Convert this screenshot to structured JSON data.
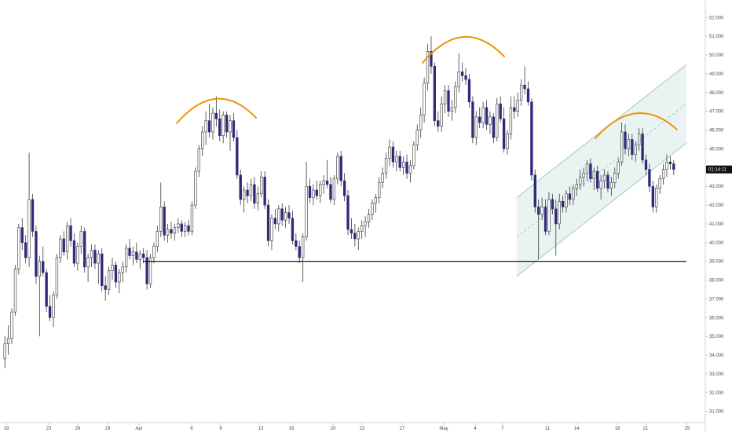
{
  "chart_data": {
    "type": "candlestick",
    "x_tick_labels": [
      "19",
      "23",
      "26",
      "29",
      "Apr",
      "6",
      "9",
      "13",
      "16",
      "20",
      "23",
      "27",
      "May",
      "4",
      "7",
      "11",
      "14",
      "18",
      "21",
      "25"
    ],
    "y_tick_labels": [
      "31.000",
      "32.000",
      "33.000",
      "34.000",
      "35.000",
      "36.000",
      "37.000",
      "38.000",
      "39.000",
      "40.000",
      "41.000",
      "42.000",
      "43.000",
      "44.000",
      "45.000",
      "46.000",
      "47.000",
      "48.000",
      "49.000",
      "50.000",
      "51.000",
      "52.000"
    ],
    "ylim": [
      30.4,
      52.6
    ],
    "current_price": 43.9,
    "countdown_label": "01:14:11",
    "support_level": 39.0,
    "colors": {
      "up_body": "#ffffff",
      "down_body": "#2e2a7a",
      "wick": "#3a3a3a",
      "support_line": "#000000",
      "arc": "#f0920c",
      "channel_fill": "#e9f4f2",
      "channel_line": "#9ec8c0",
      "price_label_bg": "#111111",
      "price_label_text": "#ffffff"
    },
    "candles": [
      [
        33.8,
        35.0,
        33.3,
        34.6
      ],
      [
        34.6,
        35.6,
        34.0,
        34.9
      ],
      [
        34.9,
        36.5,
        34.6,
        36.3
      ],
      [
        36.3,
        38.8,
        36.1,
        38.6
      ],
      [
        38.6,
        41.0,
        38.3,
        40.8
      ],
      [
        40.8,
        41.3,
        39.6,
        40.0
      ],
      [
        40.0,
        40.4,
        38.9,
        39.2
      ],
      [
        39.2,
        44.8,
        38.7,
        42.3
      ],
      [
        42.3,
        42.6,
        40.3,
        40.6
      ],
      [
        40.6,
        40.9,
        37.8,
        38.2
      ],
      [
        38.2,
        39.3,
        35.0,
        39.0
      ],
      [
        39.0,
        39.8,
        38.2,
        38.4
      ],
      [
        38.4,
        38.6,
        36.3,
        36.6
      ],
      [
        36.6,
        37.2,
        35.8,
        36.0
      ],
      [
        36.0,
        37.4,
        35.5,
        37.2
      ],
      [
        37.2,
        39.4,
        37.0,
        39.2
      ],
      [
        39.2,
        40.4,
        38.9,
        40.2
      ],
      [
        40.2,
        40.6,
        39.3,
        39.5
      ],
      [
        39.5,
        41.1,
        39.1,
        40.9
      ],
      [
        40.9,
        41.3,
        39.8,
        40.1
      ],
      [
        40.1,
        40.5,
        38.7,
        38.9
      ],
      [
        38.9,
        40.0,
        38.5,
        39.8
      ],
      [
        39.8,
        40.9,
        39.4,
        40.6
      ],
      [
        40.6,
        40.8,
        38.4,
        38.7
      ],
      [
        38.7,
        39.4,
        37.9,
        39.2
      ],
      [
        39.2,
        39.9,
        38.7,
        39.6
      ],
      [
        39.6,
        39.9,
        38.6,
        38.9
      ],
      [
        38.9,
        39.6,
        37.8,
        39.4
      ],
      [
        39.4,
        39.7,
        37.4,
        37.7
      ],
      [
        37.7,
        38.2,
        36.9,
        37.5
      ],
      [
        37.5,
        38.7,
        37.2,
        38.5
      ],
      [
        38.5,
        39.2,
        38.0,
        38.8
      ],
      [
        38.8,
        39.0,
        37.6,
        37.9
      ],
      [
        37.9,
        38.6,
        37.3,
        38.4
      ],
      [
        38.4,
        39.0,
        37.9,
        38.7
      ],
      [
        38.7,
        39.9,
        38.4,
        39.7
      ],
      [
        39.7,
        40.2,
        39.1,
        39.3
      ],
      [
        39.3,
        39.8,
        38.8,
        39.5
      ],
      [
        39.5,
        40.0,
        38.9,
        39.1
      ],
      [
        39.1,
        39.6,
        38.6,
        39.4
      ],
      [
        39.4,
        39.7,
        38.9,
        39.2
      ],
      [
        39.2,
        39.6,
        37.5,
        37.8
      ],
      [
        37.8,
        39.4,
        37.6,
        39.2
      ],
      [
        39.2,
        40.0,
        38.9,
        39.8
      ],
      [
        39.8,
        40.9,
        39.5,
        40.6
      ],
      [
        40.6,
        43.2,
        40.3,
        41.9
      ],
      [
        41.9,
        42.2,
        40.1,
        40.4
      ],
      [
        40.4,
        41.0,
        40.0,
        40.7
      ],
      [
        40.7,
        41.1,
        40.2,
        40.5
      ],
      [
        40.5,
        41.0,
        40.1,
        40.8
      ],
      [
        40.8,
        41.3,
        40.5,
        41.0
      ],
      [
        41.0,
        41.2,
        40.3,
        40.6
      ],
      [
        40.6,
        41.1,
        40.3,
        40.9
      ],
      [
        40.9,
        41.2,
        40.4,
        40.6
      ],
      [
        40.6,
        42.2,
        40.4,
        42.0
      ],
      [
        42.0,
        44.0,
        41.8,
        43.8
      ],
      [
        43.8,
        45.2,
        43.5,
        45.0
      ],
      [
        45.0,
        46.2,
        44.6,
        45.9
      ],
      [
        45.9,
        47.0,
        45.2,
        46.5
      ],
      [
        46.5,
        47.4,
        45.6,
        45.9
      ],
      [
        45.9,
        47.2,
        45.5,
        46.9
      ],
      [
        46.9,
        47.8,
        46.2,
        46.6
      ],
      [
        46.6,
        47.1,
        45.4,
        45.7
      ],
      [
        45.7,
        47.0,
        45.3,
        46.8
      ],
      [
        46.8,
        47.0,
        45.6,
        45.9
      ],
      [
        45.9,
        46.8,
        44.9,
        46.5
      ],
      [
        46.5,
        46.9,
        45.4,
        45.6
      ],
      [
        45.6,
        46.0,
        43.4,
        43.6
      ],
      [
        43.6,
        43.9,
        42.0,
        42.3
      ],
      [
        42.3,
        43.0,
        41.6,
        42.8
      ],
      [
        42.8,
        43.2,
        42.1,
        42.5
      ],
      [
        42.5,
        43.4,
        42.2,
        43.1
      ],
      [
        43.1,
        43.5,
        41.8,
        42.1
      ],
      [
        42.1,
        43.0,
        41.7,
        42.6
      ],
      [
        42.6,
        43.8,
        42.4,
        43.5
      ],
      [
        43.5,
        43.8,
        41.8,
        42.0
      ],
      [
        42.0,
        42.3,
        39.8,
        40.1
      ],
      [
        40.1,
        41.5,
        39.6,
        41.3
      ],
      [
        41.3,
        41.8,
        40.7,
        41.0
      ],
      [
        41.0,
        42.0,
        40.6,
        41.8
      ],
      [
        41.8,
        42.1,
        40.9,
        41.2
      ],
      [
        41.2,
        41.9,
        40.8,
        41.6
      ],
      [
        41.6,
        42.0,
        41.0,
        41.3
      ],
      [
        41.3,
        41.7,
        39.9,
        40.1
      ],
      [
        40.1,
        40.5,
        39.6,
        39.8
      ],
      [
        39.8,
        40.1,
        38.9,
        39.2
      ],
      [
        39.2,
        40.5,
        37.9,
        40.3
      ],
      [
        40.3,
        44.3,
        40.1,
        43.0
      ],
      [
        43.0,
        43.4,
        42.1,
        42.4
      ],
      [
        42.4,
        43.1,
        42.0,
        42.8
      ],
      [
        42.8,
        43.3,
        42.3,
        42.5
      ],
      [
        42.5,
        43.3,
        42.1,
        43.1
      ],
      [
        43.1,
        43.6,
        42.6,
        43.3
      ],
      [
        43.3,
        44.4,
        42.9,
        43.1
      ],
      [
        43.1,
        43.5,
        42.1,
        42.3
      ],
      [
        42.3,
        43.6,
        42.0,
        43.4
      ],
      [
        43.4,
        44.8,
        43.1,
        44.6
      ],
      [
        44.6,
        44.9,
        43.0,
        43.3
      ],
      [
        43.3,
        43.7,
        42.2,
        42.5
      ],
      [
        42.5,
        42.8,
        40.4,
        40.7
      ],
      [
        40.7,
        41.3,
        40.2,
        40.5
      ],
      [
        40.5,
        41.0,
        39.8,
        40.2
      ],
      [
        40.2,
        40.8,
        39.6,
        40.6
      ],
      [
        40.6,
        41.2,
        40.2,
        40.9
      ],
      [
        40.9,
        41.4,
        40.3,
        41.1
      ],
      [
        41.1,
        41.8,
        40.8,
        41.5
      ],
      [
        41.5,
        42.3,
        41.2,
        42.1
      ],
      [
        42.1,
        42.6,
        41.6,
        42.4
      ],
      [
        42.4,
        43.5,
        42.1,
        43.2
      ],
      [
        43.2,
        44.0,
        42.9,
        43.7
      ],
      [
        43.7,
        44.8,
        43.4,
        44.5
      ],
      [
        44.5,
        45.5,
        44.1,
        45.1
      ],
      [
        45.1,
        45.4,
        44.0,
        44.3
      ],
      [
        44.3,
        44.9,
        43.8,
        44.6
      ],
      [
        44.6,
        44.9,
        43.8,
        44.0
      ],
      [
        44.0,
        44.6,
        43.6,
        44.3
      ],
      [
        44.3,
        44.7,
        43.4,
        43.7
      ],
      [
        43.7,
        44.4,
        43.2,
        44.1
      ],
      [
        44.1,
        45.4,
        43.9,
        45.2
      ],
      [
        45.2,
        46.3,
        44.9,
        46.0
      ],
      [
        46.0,
        47.2,
        45.6,
        46.8
      ],
      [
        46.8,
        48.8,
        46.4,
        48.5
      ],
      [
        48.5,
        50.6,
        48.1,
        50.2
      ],
      [
        50.2,
        51.0,
        49.0,
        49.4
      ],
      [
        49.4,
        49.6,
        46.2,
        46.5
      ],
      [
        46.5,
        47.0,
        45.9,
        46.2
      ],
      [
        46.2,
        47.8,
        45.9,
        47.4
      ],
      [
        47.4,
        48.4,
        46.9,
        48.1
      ],
      [
        48.1,
        48.4,
        46.7,
        47.0
      ],
      [
        47.0,
        47.6,
        46.5,
        47.2
      ],
      [
        47.2,
        48.6,
        46.9,
        48.3
      ],
      [
        48.3,
        50.1,
        48.0,
        49.1
      ],
      [
        49.1,
        49.6,
        48.6,
        48.9
      ],
      [
        48.9,
        49.3,
        48.4,
        48.7
      ],
      [
        48.7,
        49.0,
        47.2,
        47.5
      ],
      [
        47.5,
        47.8,
        45.3,
        45.6
      ],
      [
        45.6,
        47.0,
        45.2,
        46.7
      ],
      [
        46.7,
        47.2,
        46.1,
        46.4
      ],
      [
        46.4,
        47.5,
        46.1,
        47.2
      ],
      [
        47.2,
        47.6,
        46.0,
        46.3
      ],
      [
        46.3,
        47.0,
        45.8,
        46.7
      ],
      [
        46.7,
        46.9,
        45.3,
        45.6
      ],
      [
        45.6,
        47.7,
        45.4,
        47.4
      ],
      [
        47.4,
        47.8,
        46.4,
        46.6
      ],
      [
        46.6,
        47.2,
        44.8,
        45.0
      ],
      [
        45.0,
        46.0,
        44.7,
        45.8
      ],
      [
        45.8,
        47.8,
        45.5,
        47.2
      ],
      [
        47.2,
        47.8,
        46.6,
        47.0
      ],
      [
        47.0,
        48.0,
        46.7,
        47.6
      ],
      [
        47.6,
        48.7,
        47.3,
        48.4
      ],
      [
        48.4,
        49.4,
        47.9,
        48.2
      ],
      [
        48.2,
        48.6,
        47.3,
        47.5
      ],
      [
        47.5,
        47.7,
        43.3,
        43.6
      ],
      [
        43.6,
        43.9,
        41.6,
        41.9
      ],
      [
        41.9,
        42.3,
        39.1,
        41.5
      ],
      [
        41.5,
        42.4,
        41.2,
        41.9
      ],
      [
        41.9,
        42.3,
        40.4,
        40.6
      ],
      [
        40.6,
        42.7,
        40.4,
        42.3
      ],
      [
        42.3,
        42.6,
        41.5,
        41.8
      ],
      [
        41.8,
        42.3,
        39.3,
        41.0
      ],
      [
        41.0,
        42.6,
        40.7,
        42.2
      ],
      [
        42.2,
        42.5,
        41.6,
        41.9
      ],
      [
        41.9,
        42.8,
        41.6,
        42.6
      ],
      [
        42.6,
        43.0,
        42.0,
        42.3
      ],
      [
        42.3,
        43.1,
        42.0,
        42.9
      ],
      [
        42.9,
        43.4,
        42.5,
        43.1
      ],
      [
        43.1,
        43.9,
        42.8,
        43.5
      ],
      [
        43.5,
        44.0,
        43.0,
        43.7
      ],
      [
        43.7,
        44.4,
        43.3,
        44.2
      ],
      [
        44.2,
        44.5,
        43.2,
        43.4
      ],
      [
        43.4,
        44.0,
        42.8,
        43.8
      ],
      [
        43.8,
        44.1,
        42.7,
        42.9
      ],
      [
        42.9,
        43.6,
        42.3,
        43.3
      ],
      [
        43.3,
        43.9,
        42.9,
        43.6
      ],
      [
        43.6,
        43.8,
        42.7,
        42.9
      ],
      [
        42.9,
        43.5,
        42.5,
        43.2
      ],
      [
        43.2,
        44.0,
        42.9,
        43.7
      ],
      [
        43.7,
        44.5,
        43.4,
        44.3
      ],
      [
        44.3,
        46.4,
        44.1,
        45.9
      ],
      [
        45.9,
        46.3,
        44.7,
        45.0
      ],
      [
        45.0,
        45.8,
        44.6,
        45.5
      ],
      [
        45.5,
        45.8,
        44.4,
        44.7
      ],
      [
        44.7,
        45.4,
        44.3,
        45.2
      ],
      [
        45.2,
        46.1,
        44.9,
        45.8
      ],
      [
        45.8,
        46.1,
        44.2,
        44.4
      ],
      [
        44.4,
        44.7,
        43.6,
        43.9
      ],
      [
        43.9,
        44.2,
        42.7,
        43.0
      ],
      [
        43.0,
        43.3,
        41.6,
        41.9
      ],
      [
        41.9,
        43.1,
        41.6,
        42.9
      ],
      [
        42.9,
        43.6,
        42.6,
        43.4
      ],
      [
        43.4,
        44.2,
        43.1,
        43.9
      ],
      [
        43.9,
        44.7,
        43.5,
        44.3
      ],
      [
        44.3,
        44.6,
        43.9,
        44.2
      ],
      [
        44.2,
        44.4,
        43.6,
        43.9
      ]
    ]
  }
}
